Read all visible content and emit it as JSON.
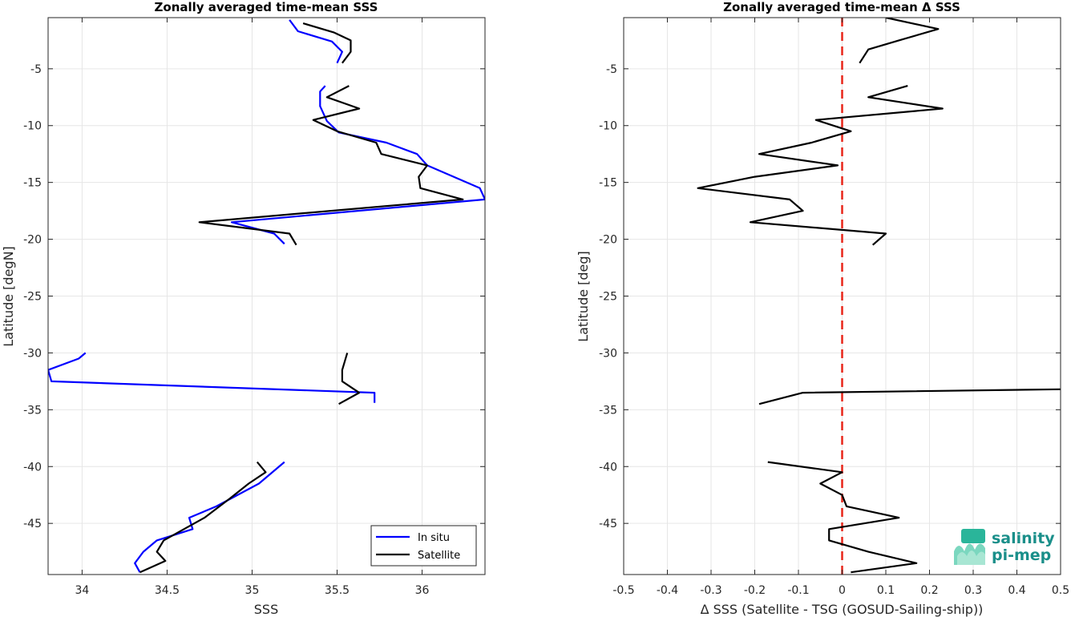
{
  "chart_data": [
    {
      "type": "line",
      "title": "Zonally averaged time-mean SSS",
      "xlabel": "SSS",
      "ylabel": "Latitude [degN]",
      "xlim": [
        33.8,
        36.37
      ],
      "ylim": [
        -49.5,
        -0.5
      ],
      "xticks": [
        34,
        34.5,
        35,
        35.5,
        36
      ],
      "xtick_labels": [
        "34",
        "34.5",
        "35",
        "35.5",
        "36"
      ],
      "yticks": [
        -5,
        -10,
        -15,
        -20,
        -25,
        -30,
        -35,
        -40,
        -45
      ],
      "ytick_labels": [
        "-5",
        "-10",
        "-15",
        "-20",
        "-25",
        "-30",
        "-35",
        "-40",
        "-45"
      ],
      "grid": true,
      "legend": {
        "position": "bottom-right",
        "entries": [
          {
            "label": "In situ",
            "color": "#0000ff"
          },
          {
            "label": "Satellite",
            "color": "#000000"
          }
        ]
      },
      "series": [
        {
          "name": "In situ",
          "color": "#0000ff",
          "segments": [
            [
              [
                35.22,
                -0.7
              ],
              [
                35.27,
                -1.7
              ],
              [
                35.47,
                -2.6
              ],
              [
                35.53,
                -3.5
              ],
              [
                35.5,
                -4.5
              ]
            ],
            [
              [
                35.43,
                -6.5
              ],
              [
                35.4,
                -7.0
              ],
              [
                35.4,
                -8.3
              ],
              [
                35.44,
                -9.6
              ],
              [
                35.51,
                -10.6
              ],
              [
                35.79,
                -11.5
              ],
              [
                35.97,
                -12.5
              ],
              [
                36.03,
                -13.5
              ],
              [
                36.34,
                -15.5
              ],
              [
                36.37,
                -16.5
              ],
              [
                34.88,
                -18.5
              ],
              [
                35.13,
                -19.5
              ],
              [
                35.19,
                -20.4
              ]
            ],
            [
              [
                34.02,
                -30.0
              ],
              [
                33.98,
                -30.5
              ],
              [
                33.8,
                -31.5
              ],
              [
                33.82,
                -32.5
              ],
              [
                35.72,
                -33.5
              ],
              [
                35.72,
                -34.4
              ]
            ],
            [
              [
                35.19,
                -39.6
              ],
              [
                35.04,
                -41.5
              ],
              [
                34.79,
                -43.5
              ],
              [
                34.63,
                -44.5
              ],
              [
                34.65,
                -45.5
              ],
              [
                34.44,
                -46.5
              ],
              [
                34.36,
                -47.5
              ],
              [
                34.31,
                -48.5
              ],
              [
                34.34,
                -49.3
              ]
            ]
          ]
        },
        {
          "name": "Satellite",
          "color": "#000000",
          "segments": [
            [
              [
                35.3,
                -1.0
              ],
              [
                35.48,
                -1.8
              ],
              [
                35.58,
                -2.5
              ],
              [
                35.58,
                -3.5
              ],
              [
                35.53,
                -4.5
              ]
            ],
            [
              [
                35.57,
                -6.5
              ],
              [
                35.44,
                -7.5
              ],
              [
                35.63,
                -8.5
              ],
              [
                35.36,
                -9.5
              ],
              [
                35.5,
                -10.5
              ],
              [
                35.73,
                -11.5
              ],
              [
                35.76,
                -12.5
              ],
              [
                36.03,
                -13.5
              ],
              [
                35.98,
                -14.5
              ],
              [
                35.99,
                -15.5
              ],
              [
                36.24,
                -16.5
              ],
              [
                34.69,
                -18.5
              ],
              [
                35.22,
                -19.5
              ],
              [
                35.26,
                -20.5
              ]
            ],
            [
              [
                35.56,
                -30.0
              ],
              [
                35.55,
                -30.5
              ],
              [
                35.53,
                -31.5
              ],
              [
                35.53,
                -32.5
              ],
              [
                35.63,
                -33.5
              ],
              [
                35.51,
                -34.5
              ]
            ],
            [
              [
                35.03,
                -39.6
              ],
              [
                35.08,
                -40.5
              ],
              [
                34.98,
                -41.5
              ],
              [
                34.87,
                -42.8
              ],
              [
                34.72,
                -44.5
              ],
              [
                34.48,
                -46.5
              ],
              [
                34.44,
                -47.5
              ],
              [
                34.49,
                -48.3
              ],
              [
                34.34,
                -49.3
              ]
            ]
          ]
        }
      ]
    },
    {
      "type": "line",
      "title": "Zonally averaged time-mean Δ SSS",
      "xlabel": "Δ SSS (Satellite - TSG (GOSUD-Sailing-ship))",
      "ylabel": "Latitude [deg]",
      "xlim": [
        -0.5,
        0.5
      ],
      "ylim": [
        -49.5,
        -0.5
      ],
      "xticks": [
        -0.5,
        -0.4,
        -0.3,
        -0.2,
        -0.1,
        0,
        0.1,
        0.2,
        0.3,
        0.4,
        0.5
      ],
      "xtick_labels": [
        "-0.5",
        "-0.4",
        "-0.3",
        "-0.2",
        "-0.1",
        "0",
        "0.1",
        "0.2",
        "0.3",
        "0.4",
        "0.5"
      ],
      "yticks": [
        -5,
        -10,
        -15,
        -20,
        -25,
        -30,
        -35,
        -40,
        -45
      ],
      "ytick_labels": [
        "-5",
        "-10",
        "-15",
        "-20",
        "-25",
        "-30",
        "-35",
        "-40",
        "-45"
      ],
      "grid": true,
      "zero_line": {
        "x": 0,
        "color": "#e8261a",
        "style": "dashed"
      },
      "series": [
        {
          "color": "#000000",
          "segments": [
            [
              [
                0.1,
                -0.5
              ],
              [
                0.22,
                -1.5
              ],
              [
                0.13,
                -2.5
              ],
              [
                0.06,
                -3.3
              ],
              [
                0.04,
                -4.5
              ]
            ],
            [
              [
                0.15,
                -6.5
              ],
              [
                0.06,
                -7.5
              ],
              [
                0.23,
                -8.5
              ],
              [
                -0.06,
                -9.5
              ],
              [
                0.02,
                -10.5
              ],
              [
                -0.07,
                -11.5
              ],
              [
                -0.19,
                -12.5
              ],
              [
                -0.01,
                -13.5
              ],
              [
                -0.2,
                -14.5
              ],
              [
                -0.33,
                -15.5
              ],
              [
                -0.12,
                -16.5
              ],
              [
                -0.09,
                -17.5
              ],
              [
                -0.21,
                -18.5
              ],
              [
                0.1,
                -19.5
              ],
              [
                0.07,
                -20.5
              ]
            ],
            [
              [
                0.5,
                -33.2
              ],
              [
                -0.09,
                -33.5
              ],
              [
                -0.19,
                -34.5
              ]
            ],
            [
              [
                -0.17,
                -39.6
              ],
              [
                0.0,
                -40.5
              ],
              [
                -0.05,
                -41.5
              ],
              [
                0.0,
                -42.5
              ],
              [
                0.01,
                -43.5
              ],
              [
                0.13,
                -44.5
              ],
              [
                -0.03,
                -45.5
              ],
              [
                -0.03,
                -46.5
              ],
              [
                0.06,
                -47.5
              ],
              [
                0.17,
                -48.5
              ],
              [
                0.02,
                -49.3
              ]
            ]
          ]
        }
      ]
    }
  ],
  "logo": {
    "line1": "salinity",
    "line2": "pi-mep"
  }
}
